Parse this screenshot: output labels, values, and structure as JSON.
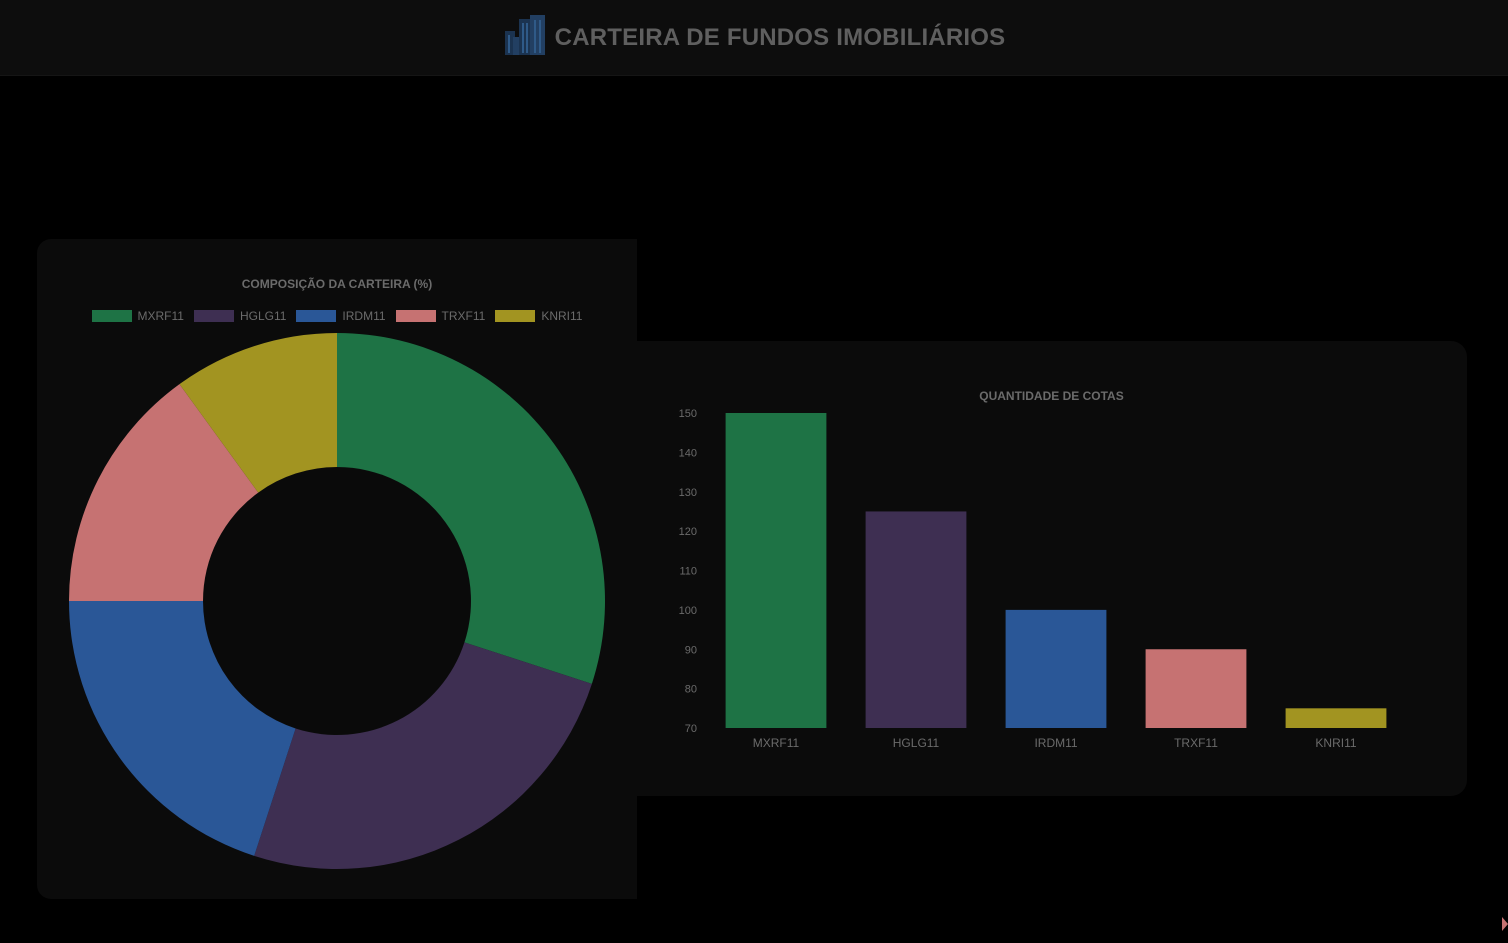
{
  "header": {
    "title": "CARTEIRA DE FUNDOS IMOBILIÁRIOS",
    "icon": "buildings-icon"
  },
  "colors": {
    "MXRF11": "#1e7345",
    "HGLG11": "#3e2f52",
    "IRDM11": "#2a5797",
    "TRXF11": "#c67272",
    "KNRI11": "#a29421",
    "text": "#6b6b6b",
    "card": "#0b0b0b",
    "hole": "#0a0a0a"
  },
  "chart_data": [
    {
      "type": "pie",
      "donut": true,
      "title": "COMPOSIÇÃO DA CARTEIRA (%)",
      "categories": [
        "MXRF11",
        "HGLG11",
        "IRDM11",
        "TRXF11",
        "KNRI11"
      ],
      "values": [
        30.0,
        25.0,
        20.0,
        15.0,
        10.0
      ],
      "legend": "top"
    },
    {
      "type": "bar",
      "title": "QUANTIDADE DE COTAS",
      "categories": [
        "MXRF11",
        "HGLG11",
        "IRDM11",
        "TRXF11",
        "KNRI11"
      ],
      "values": [
        150,
        125,
        100,
        90,
        75
      ],
      "ylim": [
        70,
        150
      ],
      "yticks": [
        70,
        80,
        90,
        100,
        110,
        120,
        130,
        140,
        150
      ],
      "xlabel": "",
      "ylabel": "",
      "grid": false,
      "legend": "none"
    }
  ]
}
